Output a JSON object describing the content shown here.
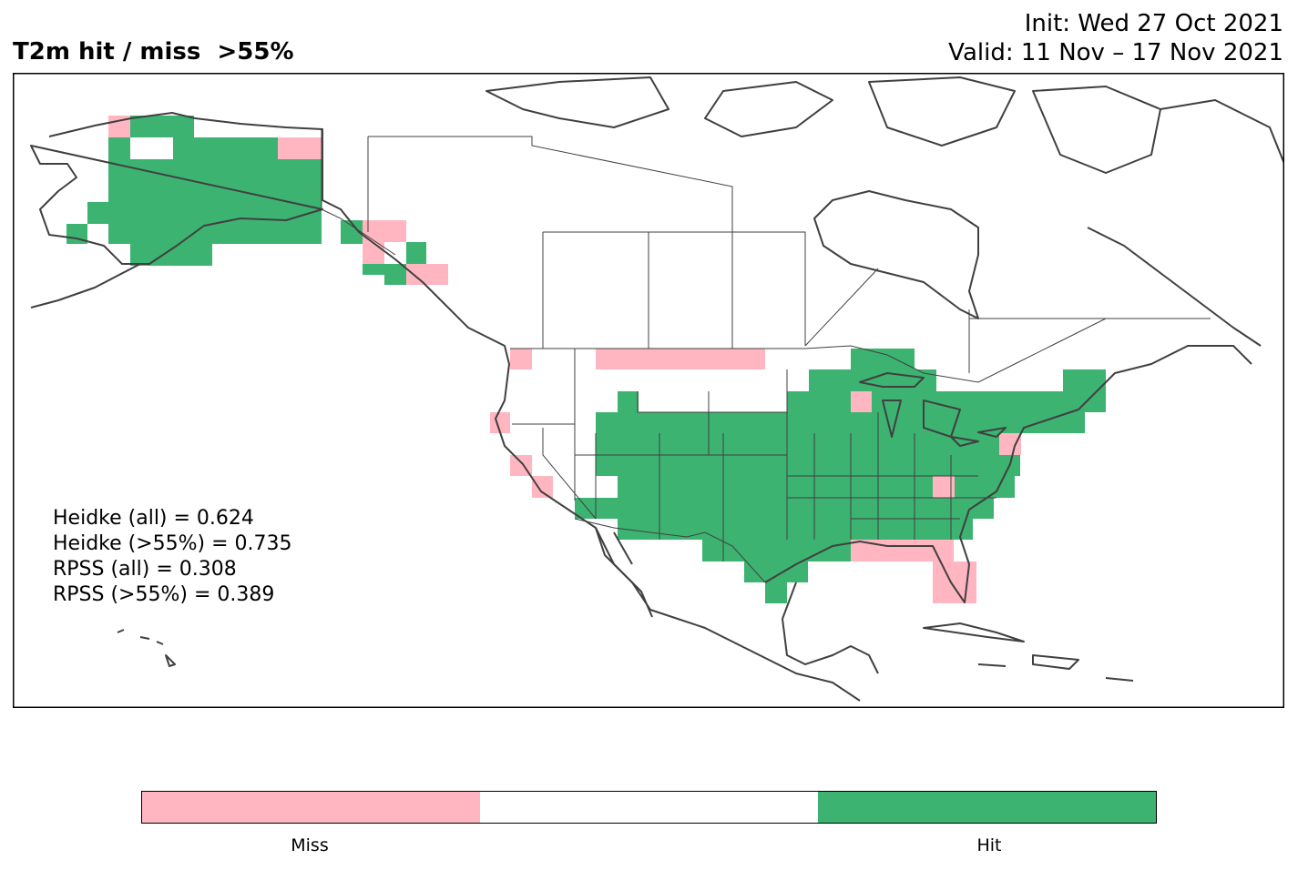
{
  "title": "T2m hit / miss  >55%",
  "init": "Init: Wed 27 Oct 2021",
  "valid": "Valid: 11 Nov – 17 Nov 2021",
  "stats": [
    "Heidke (all) = 0.624",
    "Heidke (>55%) = 0.735",
    "RPSS (all) = 0.308",
    "RPSS (>55%) = 0.389"
  ],
  "colorbar": {
    "colors": [
      "#ffb6c1",
      "#ffffff",
      "#3cb371"
    ],
    "labels": [
      "Miss",
      "Hit"
    ]
  },
  "legend_colors": {
    "miss": "#ffb6c1",
    "hit": "#3cb371",
    "coast": "#404040"
  }
}
